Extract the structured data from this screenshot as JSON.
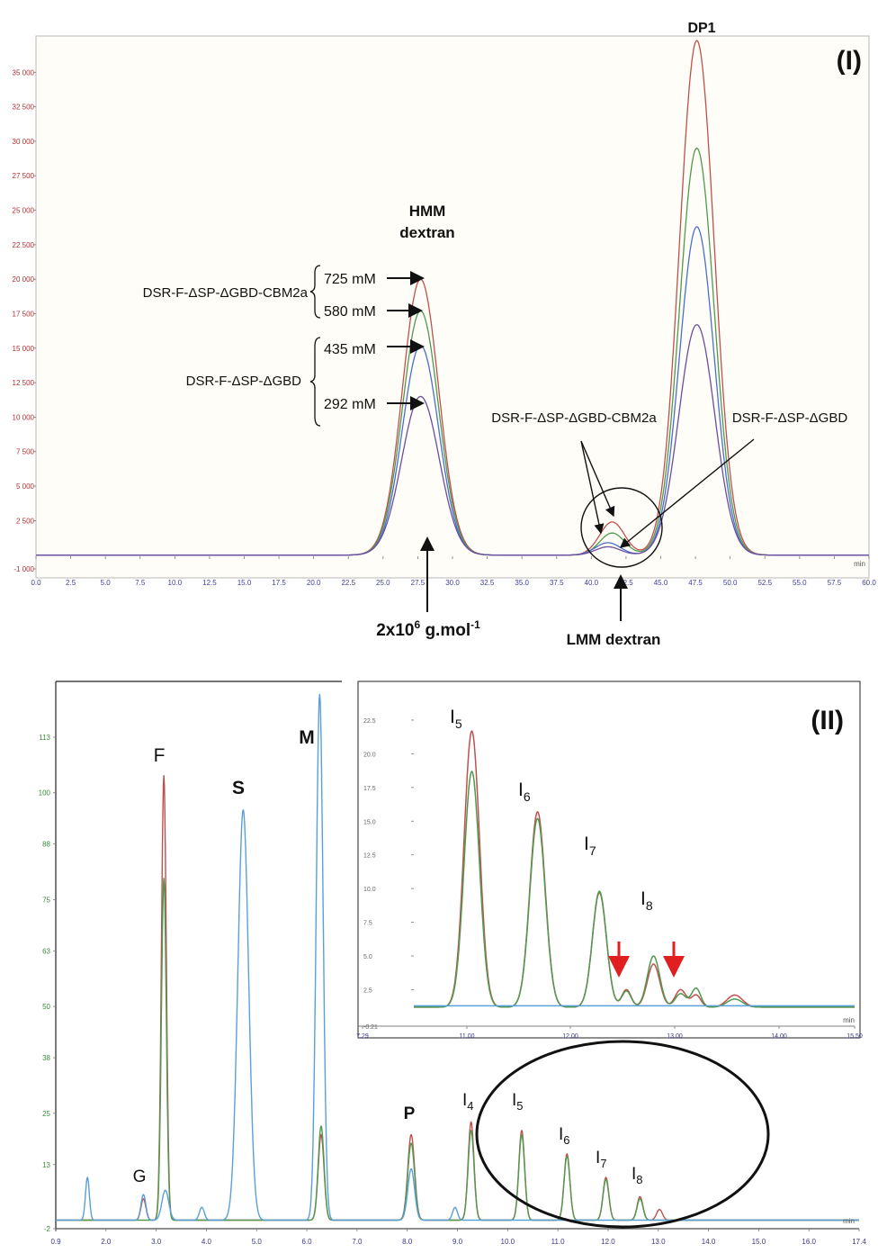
{
  "colors": {
    "red": "#c0504d",
    "green": "#4f9a4f",
    "blue": "#4a6fd0",
    "lightblue": "#5aa0d8",
    "purple": "#6b4ea0",
    "axis_y_ticks": "#b03030",
    "axis_y_ticks2": "#3a8a3a",
    "arrow_red": "#e02020"
  },
  "chart_data": [
    {
      "type": "line",
      "panel": "(I)",
      "xlim": [
        0,
        60
      ],
      "ylim": [
        -1000,
        37500
      ],
      "xticks": [
        "0.0",
        "2.5",
        "5.0",
        "7.5",
        "10.0",
        "12.5",
        "15.0",
        "17.5",
        "20.0",
        "22.5",
        "25.0",
        "27.5",
        "30.0",
        "32.5",
        "35.0",
        "37.5",
        "40.0",
        "42.5",
        "45.0",
        "47.5",
        "50.0",
        "52.5",
        "55.0",
        "57.5",
        "60.0"
      ],
      "xunit": "min",
      "yticks": [
        "-1 000",
        "2 500",
        "5 000",
        "7 500",
        "10 000",
        "12 500",
        "15 000",
        "17 500",
        "20 000",
        "22 500",
        "25 000",
        "27 500",
        "30 000",
        "32 500",
        "35 000"
      ],
      "series": [
        {
          "color_key": "red",
          "baseline": 0,
          "peaks": [
            {
              "x": 27.7,
              "h": 20000,
              "w": 1.3
            },
            {
              "x": 41.5,
              "h": 2400,
              "w": 0.9
            },
            {
              "x": 47.6,
              "h": 37300,
              "w": 1.25
            }
          ]
        },
        {
          "color_key": "green",
          "baseline": 0,
          "peaks": [
            {
              "x": 27.7,
              "h": 17700,
              "w": 1.3
            },
            {
              "x": 41.5,
              "h": 1600,
              "w": 0.9
            },
            {
              "x": 47.6,
              "h": 29500,
              "w": 1.25
            }
          ]
        },
        {
          "color_key": "blue",
          "baseline": 0,
          "peaks": [
            {
              "x": 27.7,
              "h": 15200,
              "w": 1.3
            },
            {
              "x": 41.2,
              "h": 900,
              "w": 0.9
            },
            {
              "x": 47.6,
              "h": 23800,
              "w": 1.25
            }
          ]
        },
        {
          "color_key": "purple",
          "baseline": 0,
          "peaks": [
            {
              "x": 27.7,
              "h": 11500,
              "w": 1.35
            },
            {
              "x": 41.2,
              "h": 600,
              "w": 0.9
            },
            {
              "x": 47.6,
              "h": 16700,
              "w": 1.3
            }
          ]
        }
      ],
      "annotations": {
        "panel_label": "(I)",
        "dp1": "DP1",
        "hmm_line1": "HMM",
        "hmm_line2": "dextran",
        "group_cbm": "DSR-F-ΔSP-ΔGBD-CBM2a",
        "group_gbd": "DSR-F-ΔSP-ΔGBD",
        "c725": "725 mM",
        "c580": "580 mM",
        "c435": "435 mM",
        "c292": "292 mM",
        "lmm_cbm": "DSR-F-ΔSP-ΔGBD-CBM2a",
        "lmm_gbd": "DSR-F-ΔSP-ΔGBD",
        "mw_prefix": "2x10",
        "mw_exp": "6",
        "mw_unit": " g.mol",
        "mw_unit_exp": "-1",
        "lmm": "LMM dextran",
        "min": "min"
      }
    },
    {
      "type": "line",
      "panel": "(II)",
      "xlim": [
        0.9,
        17.4
      ],
      "ylim": [
        -2,
        125
      ],
      "xticks": [
        "0.9",
        "2.0",
        "3.0",
        "4.0",
        "5.0",
        "6.0",
        "7.0",
        "8.0",
        "9.0",
        "10.0",
        "11.0",
        "12.0",
        "13.0",
        "14.0",
        "15.0",
        "16.0",
        "17.4"
      ],
      "xunit": "min",
      "yticks": [
        "-2",
        "13",
        "25",
        "38",
        "50",
        "63",
        "75",
        "88",
        "100",
        "113"
      ],
      "series": [
        {
          "color_key": "red",
          "baseline": 0,
          "peaks": [
            {
              "x": 3.12,
              "h": 104,
              "w": 0.05
            },
            {
              "x": 2.7,
              "h": 5,
              "w": 0.05
            },
            {
              "x": 6.35,
              "h": 20,
              "w": 0.06
            },
            {
              "x": 8.2,
              "h": 20,
              "w": 0.07
            },
            {
              "x": 9.43,
              "h": 23,
              "w": 0.06
            },
            {
              "x": 10.47,
              "h": 21,
              "w": 0.06
            },
            {
              "x": 11.4,
              "h": 15.5,
              "w": 0.06
            },
            {
              "x": 12.2,
              "h": 10,
              "w": 0.06
            },
            {
              "x": 12.9,
              "h": 5.5,
              "w": 0.06
            },
            {
              "x": 13.3,
              "h": 2.5,
              "w": 0.06
            }
          ]
        },
        {
          "color_key": "green",
          "baseline": 0,
          "peaks": [
            {
              "x": 3.12,
              "h": 80,
              "w": 0.05
            },
            {
              "x": 6.35,
              "h": 22,
              "w": 0.06
            },
            {
              "x": 8.2,
              "h": 18,
              "w": 0.07
            },
            {
              "x": 9.43,
              "h": 21,
              "w": 0.06
            },
            {
              "x": 10.47,
              "h": 20,
              "w": 0.06
            },
            {
              "x": 11.4,
              "h": 15,
              "w": 0.06
            },
            {
              "x": 12.2,
              "h": 9.5,
              "w": 0.06
            },
            {
              "x": 12.9,
              "h": 5,
              "w": 0.06
            }
          ]
        },
        {
          "color_key": "lightblue",
          "baseline": 0,
          "peaks": [
            {
              "x": 1.55,
              "h": 10,
              "w": 0.04
            },
            {
              "x": 2.7,
              "h": 6,
              "w": 0.05
            },
            {
              "x": 3.15,
              "h": 7,
              "w": 0.07
            },
            {
              "x": 3.9,
              "h": 3,
              "w": 0.05
            },
            {
              "x": 4.75,
              "h": 96,
              "w": 0.11
            },
            {
              "x": 6.32,
              "h": 123,
              "w": 0.07
            },
            {
              "x": 8.2,
              "h": 12,
              "w": 0.07
            },
            {
              "x": 9.1,
              "h": 3,
              "w": 0.05
            }
          ]
        }
      ],
      "labels": {
        "panel_label": "(II)",
        "G": "G",
        "F": "F",
        "S": "S",
        "M": "M",
        "P": "P",
        "I": "I",
        "s4": "4",
        "s5": "5",
        "s6": "6",
        "s7": "7",
        "s8": "8",
        "min": "min"
      }
    },
    {
      "type": "line",
      "panel": "inset",
      "xlim": [
        9.8,
        15.5
      ],
      "ylim": [
        -0.21,
        23.5
      ],
      "xticks": [
        "7.29",
        "11.00",
        "12.00",
        "13.00",
        "14.00",
        "15.50"
      ],
      "xunit": "min",
      "yticks": [
        "-0.21",
        "2.5",
        "5.0",
        "7.5",
        "10.0",
        "12.5",
        "15.0",
        "17.5",
        "20.0",
        "22.5"
      ],
      "series": [
        {
          "color_key": "red",
          "baseline": 1.2,
          "peaks": [
            {
              "x": 10.55,
              "h": 20.5,
              "w": 0.1
            },
            {
              "x": 11.4,
              "h": 14.5,
              "w": 0.1
            },
            {
              "x": 12.2,
              "h": 8.5,
              "w": 0.09
            },
            {
              "x": 12.55,
              "h": 1.3,
              "w": 0.06
            },
            {
              "x": 12.9,
              "h": 3.2,
              "w": 0.08
            },
            {
              "x": 13.25,
              "h": 1.3,
              "w": 0.07
            },
            {
              "x": 13.45,
              "h": 0.9,
              "w": 0.06
            },
            {
              "x": 13.95,
              "h": 0.9,
              "w": 0.1
            }
          ]
        },
        {
          "color_key": "green",
          "baseline": 1.2,
          "peaks": [
            {
              "x": 10.55,
              "h": 17.5,
              "w": 0.1
            },
            {
              "x": 11.4,
              "h": 14.0,
              "w": 0.1
            },
            {
              "x": 12.2,
              "h": 8.6,
              "w": 0.09
            },
            {
              "x": 12.55,
              "h": 1.2,
              "w": 0.06
            },
            {
              "x": 12.9,
              "h": 3.8,
              "w": 0.08
            },
            {
              "x": 13.25,
              "h": 1.0,
              "w": 0.07
            },
            {
              "x": 13.45,
              "h": 1.4,
              "w": 0.06
            },
            {
              "x": 13.95,
              "h": 0.6,
              "w": 0.1
            }
          ]
        },
        {
          "color_key": "lightblue",
          "baseline": 1.3,
          "peaks": []
        }
      ],
      "labels": {
        "I": "I",
        "s5": "5",
        "s6": "6",
        "s7": "7",
        "s8": "8",
        "min": "min"
      }
    }
  ]
}
